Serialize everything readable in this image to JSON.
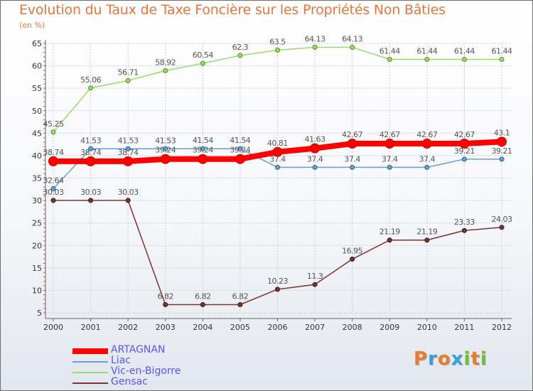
{
  "title": "Evolution du Taux de Taxe Foncière sur les Propriétés Non Bâties",
  "unit_label": "(en %)",
  "logo": {
    "letters": [
      "P",
      "r",
      "o",
      "x",
      "i",
      "t",
      "i"
    ],
    "colors": [
      "#e87d2d",
      "#3aa0d8",
      "#e87d2d",
      "#3aa0d8",
      "#6cbf3a",
      "#e87d2d",
      "#6cbf3a"
    ]
  },
  "chart_data": {
    "type": "line",
    "title": "Evolution du Taux de Taxe Foncière sur les Propriétés Non Bâties",
    "ylabel": "(en %)",
    "xlabel": "",
    "ylim": [
      5,
      65
    ],
    "yticks": [
      5,
      10,
      15,
      20,
      25,
      30,
      35,
      40,
      45,
      50,
      55,
      60,
      65
    ],
    "grid": true,
    "legend": "bottom-left",
    "x": [
      "2000",
      "2001",
      "2002",
      "2003",
      "2004",
      "2005",
      "2006",
      "2007",
      "2008",
      "2009",
      "2010",
      "2011",
      "2012"
    ],
    "series": [
      {
        "name": "ARTAGNAN",
        "color": "#ff0000",
        "values": [
          38.74,
          38.74,
          38.74,
          39.24,
          39.24,
          39.24,
          40.81,
          41.63,
          42.67,
          42.67,
          42.67,
          42.67,
          43.1
        ],
        "labels": [
          "38.74",
          "38.74",
          "38.74",
          "39.24",
          "39.24",
          "39.24",
          "40.81",
          "41.63",
          "42.67",
          "42.67",
          "42.67",
          "42.67",
          "43.1"
        ]
      },
      {
        "name": "Liac",
        "color": "#6a9fd4",
        "values": [
          32.64,
          41.53,
          41.53,
          41.53,
          41.54,
          41.54,
          37.4,
          37.4,
          37.4,
          37.4,
          37.4,
          39.21,
          39.21
        ],
        "labels": [
          "32.64",
          "41.53",
          "41.53",
          "41.53",
          "41.54",
          "41.54",
          "37.4",
          "37.4",
          "37.4",
          "37.4",
          "37.4",
          "39.21",
          "39.21"
        ]
      },
      {
        "name": "Vic-en-Bigorre",
        "color": "#99dd66",
        "values": [
          45.25,
          55.06,
          56.71,
          58.92,
          60.54,
          62.3,
          63.5,
          64.13,
          64.13,
          61.44,
          61.44,
          61.44,
          61.44
        ],
        "labels": [
          "45.25",
          "55.06",
          "56.71",
          "58.92",
          "60.54",
          "62.3",
          "63.5",
          "64.13",
          "64.13",
          "61.44",
          "61.44",
          "61.44",
          "61.44"
        ]
      },
      {
        "name": "Gensac",
        "color": "#7a3434",
        "values": [
          30.03,
          30.03,
          30.03,
          6.82,
          6.82,
          6.82,
          10.23,
          11.3,
          16.95,
          21.19,
          21.19,
          23.33,
          24.03
        ],
        "labels": [
          "30.03",
          "30.03",
          "30.03",
          "6.82",
          "6.82",
          "6.82",
          "10.23",
          "11.3",
          "16.95",
          "21.19",
          "21.19",
          "23.33",
          "24.03"
        ]
      }
    ]
  }
}
